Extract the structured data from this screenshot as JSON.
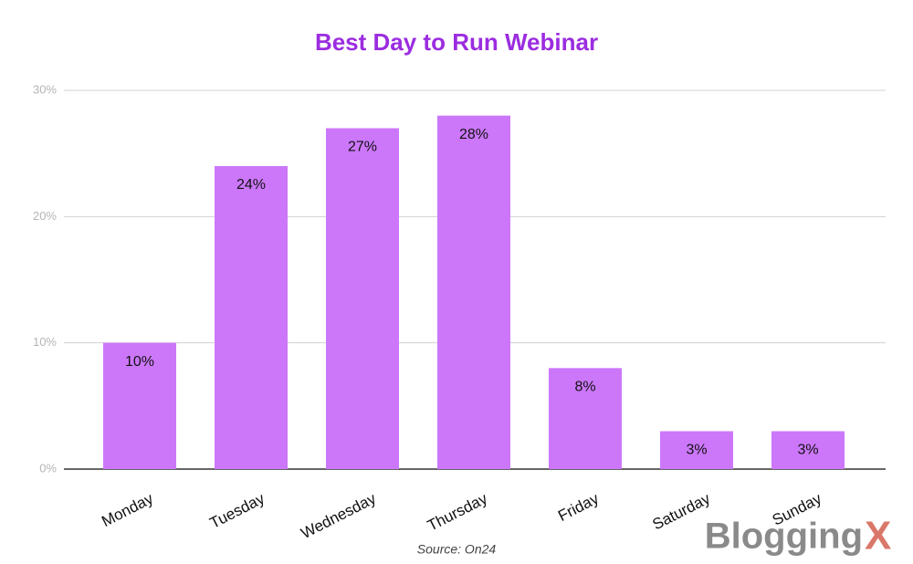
{
  "chart_data": {
    "type": "bar",
    "title": "Best Day to Run Webinar",
    "categories": [
      "Monday",
      "Tuesday",
      "Wednesday",
      "Thursday",
      "Friday",
      "Saturday",
      "Sunday"
    ],
    "values": [
      10,
      24,
      27,
      28,
      8,
      3,
      3
    ],
    "value_labels": [
      "10%",
      "24%",
      "27%",
      "28%",
      "8%",
      "3%",
      "3%"
    ],
    "color": "#cc77fa",
    "ylim": [
      0,
      30
    ],
    "yticks": [
      {
        "value": 0,
        "label": "0%"
      },
      {
        "value": 10,
        "label": "10%"
      },
      {
        "value": 20,
        "label": "20%"
      },
      {
        "value": 30,
        "label": "30%"
      }
    ],
    "grid": true,
    "source": "Source: On24"
  },
  "brand": {
    "name": "Blogging",
    "mark": "X"
  }
}
